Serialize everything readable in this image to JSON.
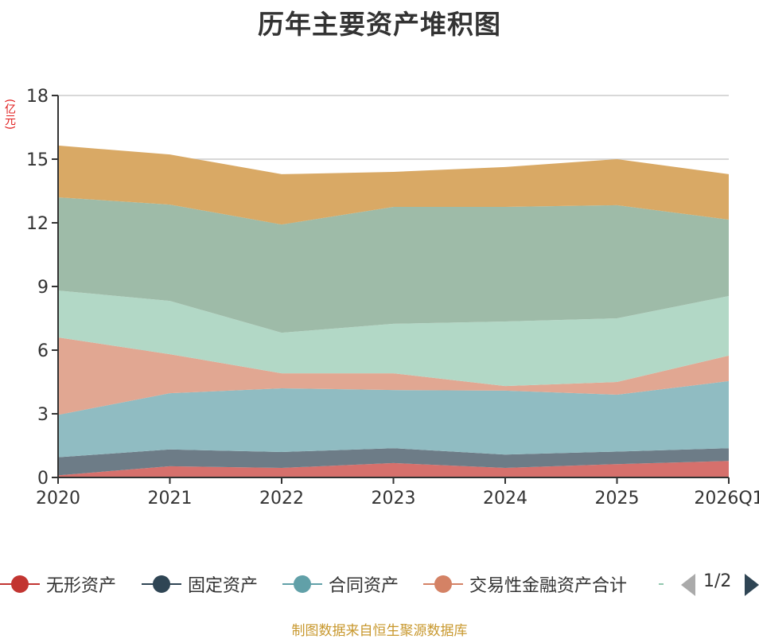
{
  "title": "历年主要资产堆积图",
  "source": "制图数据来自恒生聚源数据库",
  "legend": {
    "pager": "1/2",
    "items": [
      {
        "label": "无形资产",
        "color": "#c23531"
      },
      {
        "label": "固定资产",
        "color": "#2f4554"
      },
      {
        "label": "合同资产",
        "color": "#61a0a8"
      },
      {
        "label": "交易性金融资产合计",
        "color": "#d48265"
      }
    ],
    "partial_item_color": "#91c7ae"
  },
  "chart_data": {
    "type": "area",
    "stacked": true,
    "title": "历年主要资产堆积图",
    "ylabel": "(亿元)",
    "xlabel": "",
    "ylim": [
      0,
      18
    ],
    "yticks": [
      0,
      3,
      6,
      9,
      12,
      15,
      18
    ],
    "grid": true,
    "legend_position": "bottom",
    "categories": [
      "2020",
      "2021",
      "2022",
      "2023",
      "2024",
      "2025",
      "2026Q1"
    ],
    "series": [
      {
        "name": "无形资产",
        "color": "#c23531",
        "fill": "#d6706c",
        "values": [
          0.1,
          0.53,
          0.45,
          0.68,
          0.45,
          0.63,
          0.78
        ]
      },
      {
        "name": "固定资产",
        "color": "#2f4554",
        "fill": "#6d7c87",
        "values": [
          0.85,
          0.79,
          0.75,
          0.7,
          0.63,
          0.59,
          0.6
        ]
      },
      {
        "name": "合同资产",
        "color": "#61a0a8",
        "fill": "#90bcc2",
        "values": [
          2.0,
          2.65,
          3.0,
          2.74,
          3.01,
          2.68,
          3.16
        ]
      },
      {
        "name": "交易性金融资产合计",
        "color": "#d48265",
        "fill": "#e1a792",
        "values": [
          3.65,
          1.84,
          0.71,
          0.79,
          0.22,
          0.6,
          1.2
        ]
      },
      {
        "name": "",
        "color": "#91c7ae",
        "fill": "#b2d8c6",
        "values": [
          2.21,
          2.51,
          1.91,
          2.33,
          3.04,
          3.0,
          2.81
        ]
      },
      {
        "name": "",
        "color": "#749f83",
        "fill": "#9ebba8",
        "values": [
          4.39,
          4.54,
          5.1,
          5.51,
          5.4,
          5.33,
          3.6
        ]
      },
      {
        "name": "",
        "color": "#ca8622",
        "fill": "#d9a965",
        "values": [
          2.44,
          2.36,
          2.37,
          1.65,
          1.88,
          2.17,
          2.14
        ]
      }
    ]
  }
}
